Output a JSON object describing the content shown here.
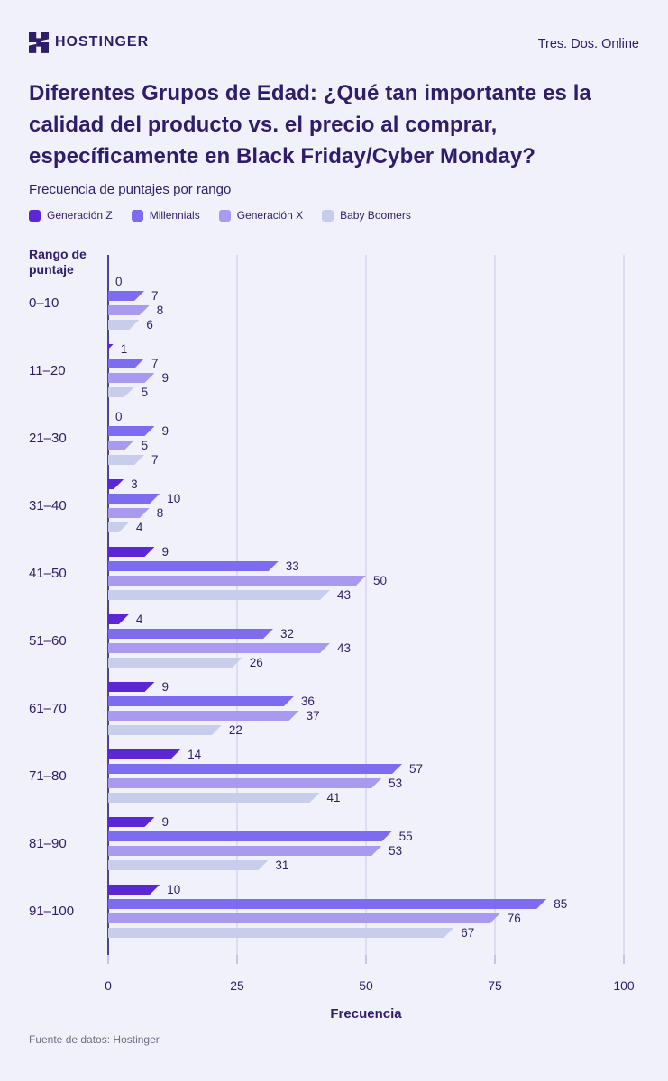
{
  "header": {
    "brand": "HOSTINGER",
    "campaign": "Tres. Dos. Online"
  },
  "title": "Diferentes Grupos de Edad: ¿Qué tan importante es la calidad del producto vs. el precio al comprar, específicamente en Black Friday/Cyber Monday?",
  "subtitle": "Frecuencia de puntajes por rango",
  "footer": "Fuente de datos: Hostinger",
  "colors": {
    "background": "#F1F1FB",
    "text": "#2F1C6A",
    "muted": "#6E6C85",
    "axis": "#4F4390",
    "gridline": "#DDDCF4"
  },
  "chart_data": {
    "type": "bar",
    "orientation": "horizontal",
    "title": "Frecuencia de puntajes por rango",
    "xlabel": "Frecuencia",
    "ylabel": "Rango de puntaje",
    "xlim": [
      0,
      100
    ],
    "xticks": [
      0,
      25,
      50,
      75,
      100
    ],
    "grid": true,
    "legend_position": "top",
    "categories": [
      "0–10",
      "11–20",
      "21–30",
      "31–40",
      "41–50",
      "51–60",
      "61–70",
      "71–80",
      "81–90",
      "91–100"
    ],
    "series": [
      {
        "name": "Generación Z",
        "color": "#5B27D4",
        "values": [
          0,
          1,
          0,
          3,
          9,
          4,
          9,
          14,
          9,
          10
        ]
      },
      {
        "name": "Millennials",
        "color": "#7D6BF0",
        "values": [
          7,
          7,
          9,
          10,
          33,
          32,
          36,
          57,
          55,
          85
        ]
      },
      {
        "name": "Generación X",
        "color": "#A99AEF",
        "values": [
          8,
          9,
          5,
          8,
          50,
          43,
          37,
          53,
          53,
          76
        ]
      },
      {
        "name": "Baby Boomers",
        "color": "#C8CDEB",
        "values": [
          6,
          5,
          7,
          4,
          43,
          26,
          22,
          41,
          31,
          67
        ]
      }
    ]
  }
}
